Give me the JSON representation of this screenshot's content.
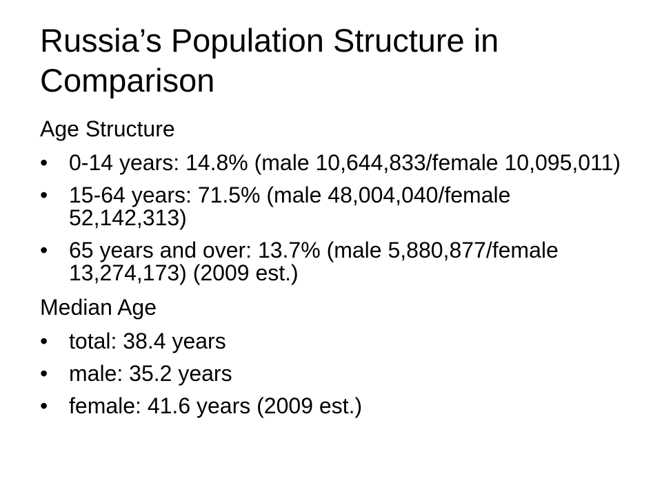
{
  "title": "Russia’s Population Structure in Comparison",
  "sections": [
    {
      "heading": "Age Structure",
      "items": [
        "0-14 years: 14.8% (male 10,644,833/female 10,095,011)",
        "15-64 years: 71.5% (male 48,004,040/female 52,142,313)",
        "65 years and over: 13.7% (male 5,880,877/female 13,274,173) (2009 est.)"
      ]
    },
    {
      "heading": "Median Age",
      "items": [
        "total: 38.4 years",
        "male: 35.2 years",
        "female: 41.6 years (2009 est.)"
      ]
    }
  ]
}
